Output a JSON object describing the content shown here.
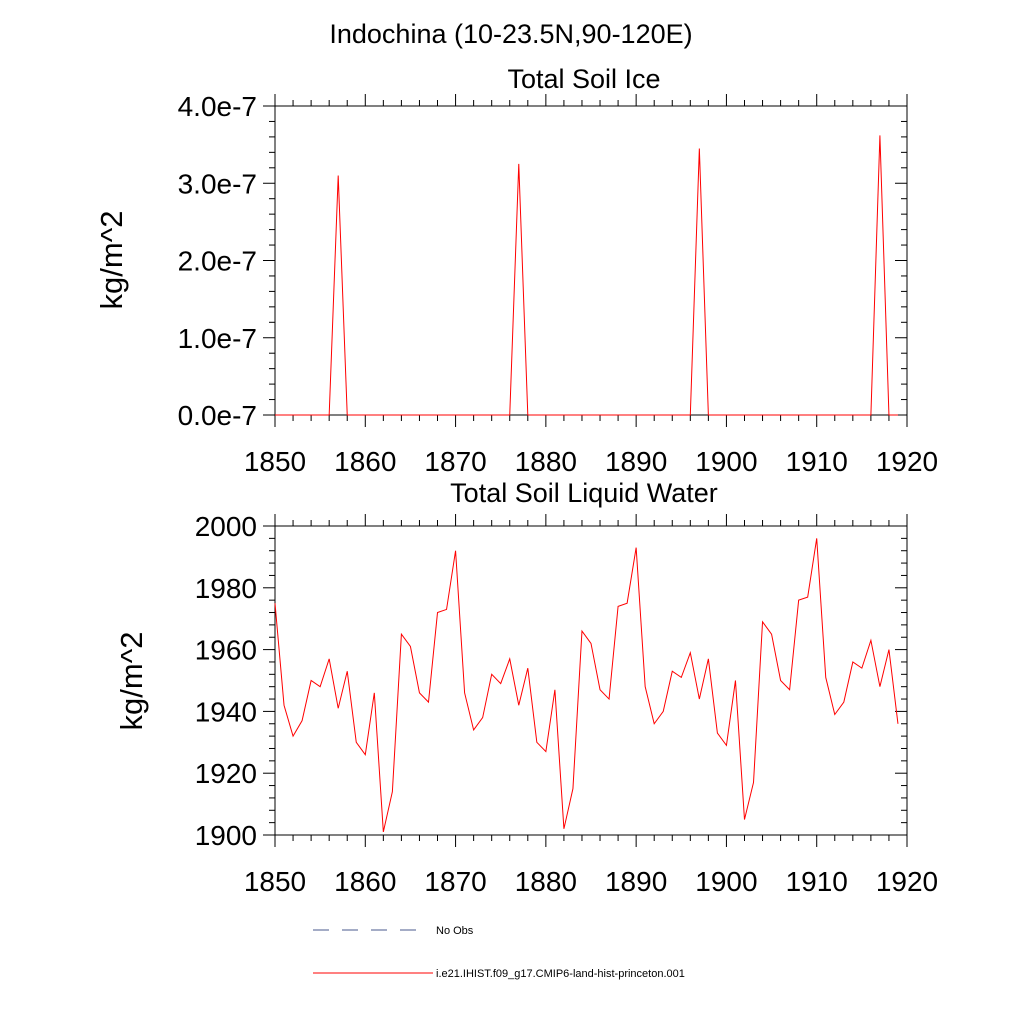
{
  "header": {
    "region_title": "Indochina (10-23.5N,90-120E)"
  },
  "chart_data": [
    {
      "type": "line",
      "title": "Total Soil Ice",
      "xlabel": "",
      "ylabel": "kg/m^2",
      "xlim": [
        1850,
        1920
      ],
      "ylim": [
        0,
        4e-07
      ],
      "x_ticks": [
        1850,
        1860,
        1870,
        1880,
        1890,
        1900,
        1910,
        1920
      ],
      "x_tick_labels": [
        "1850",
        "1860",
        "1870",
        "1880",
        "1890",
        "1900",
        "1910",
        "1920"
      ],
      "y_ticks": [
        0,
        1e-07,
        2e-07,
        3e-07,
        4e-07
      ],
      "y_tick_labels": [
        "0.0e-7",
        "1.0e-7",
        "2.0e-7",
        "3.0e-7",
        "4.0e-7"
      ],
      "series": [
        {
          "name": "i.e21.IHIST.f09_g17.CMIP6-land-hist-princeton.001",
          "color": "#ff0000",
          "x": [
            1850,
            1851,
            1852,
            1853,
            1854,
            1855,
            1856,
            1857,
            1858,
            1859,
            1860,
            1861,
            1862,
            1863,
            1864,
            1865,
            1866,
            1867,
            1868,
            1869,
            1870,
            1871,
            1872,
            1873,
            1874,
            1875,
            1876,
            1877,
            1878,
            1879,
            1880,
            1881,
            1882,
            1883,
            1884,
            1885,
            1886,
            1887,
            1888,
            1889,
            1890,
            1891,
            1892,
            1893,
            1894,
            1895,
            1896,
            1897,
            1898,
            1899,
            1900,
            1901,
            1902,
            1903,
            1904,
            1905,
            1906,
            1907,
            1908,
            1909,
            1910,
            1911,
            1912,
            1913,
            1914,
            1915,
            1916,
            1917,
            1918,
            1919
          ],
          "values": [
            0,
            0,
            0,
            0,
            0,
            0,
            0,
            3.1e-07,
            0,
            0,
            0,
            0,
            0,
            0,
            0,
            0,
            0,
            0,
            0,
            0,
            0,
            0,
            0,
            0,
            0,
            0,
            0,
            3.25e-07,
            0,
            0,
            0,
            0,
            0,
            0,
            0,
            0,
            0,
            0,
            0,
            0,
            0,
            0,
            0,
            0,
            0,
            0,
            0,
            3.45e-07,
            0,
            0,
            0,
            0,
            0,
            0,
            0,
            0,
            0,
            0,
            0,
            0,
            0,
            0,
            0,
            0,
            0,
            0,
            0,
            3.62e-07,
            0,
            0
          ]
        }
      ]
    },
    {
      "type": "line",
      "title": "Total Soil Liquid Water",
      "xlabel": "",
      "ylabel": "kg/m^2",
      "xlim": [
        1850,
        1920
      ],
      "ylim": [
        1900,
        2000
      ],
      "x_ticks": [
        1850,
        1860,
        1870,
        1880,
        1890,
        1900,
        1910,
        1920
      ],
      "x_tick_labels": [
        "1850",
        "1860",
        "1870",
        "1880",
        "1890",
        "1900",
        "1910",
        "1920"
      ],
      "y_ticks": [
        1900,
        1920,
        1940,
        1960,
        1980,
        2000
      ],
      "y_tick_labels": [
        "1900",
        "1920",
        "1940",
        "1960",
        "1980",
        "2000"
      ],
      "series": [
        {
          "name": "i.e21.IHIST.f09_g17.CMIP6-land-hist-princeton.001",
          "color": "#ff0000",
          "x": [
            1850,
            1851,
            1852,
            1853,
            1854,
            1855,
            1856,
            1857,
            1858,
            1859,
            1860,
            1861,
            1862,
            1863,
            1864,
            1865,
            1866,
            1867,
            1868,
            1869,
            1870,
            1871,
            1872,
            1873,
            1874,
            1875,
            1876,
            1877,
            1878,
            1879,
            1880,
            1881,
            1882,
            1883,
            1884,
            1885,
            1886,
            1887,
            1888,
            1889,
            1890,
            1891,
            1892,
            1893,
            1894,
            1895,
            1896,
            1897,
            1898,
            1899,
            1900,
            1901,
            1902,
            1903,
            1904,
            1905,
            1906,
            1907,
            1908,
            1909,
            1910,
            1911,
            1912,
            1913,
            1914,
            1915,
            1916,
            1917,
            1918,
            1919
          ],
          "values": [
            1975,
            1942,
            1932,
            1937,
            1950,
            1948,
            1957,
            1941,
            1953,
            1930,
            1926,
            1946,
            1901,
            1914,
            1965,
            1961,
            1946,
            1943,
            1972,
            1973,
            1992,
            1946,
            1934,
            1938,
            1952,
            1949,
            1957,
            1942,
            1954,
            1930,
            1927,
            1947,
            1902,
            1915,
            1966,
            1962,
            1947,
            1944,
            1974,
            1975,
            1993,
            1948,
            1936,
            1940,
            1953,
            1951,
            1959,
            1944,
            1957,
            1933,
            1929,
            1950,
            1905,
            1917,
            1969,
            1965,
            1950,
            1947,
            1976,
            1977,
            1996,
            1951,
            1939,
            1943,
            1956,
            1954,
            1963,
            1948,
            1960,
            1936
          ]
        }
      ]
    }
  ],
  "legend": {
    "placement": "bottom-center",
    "entries": [
      {
        "label": "No Obs",
        "color": "#4a5a8c",
        "style": "dashed"
      },
      {
        "label": "i.e21.IHIST.f09_g17.CMIP6-land-hist-princeton.001",
        "color": "#ff0000",
        "style": "solid"
      }
    ]
  }
}
